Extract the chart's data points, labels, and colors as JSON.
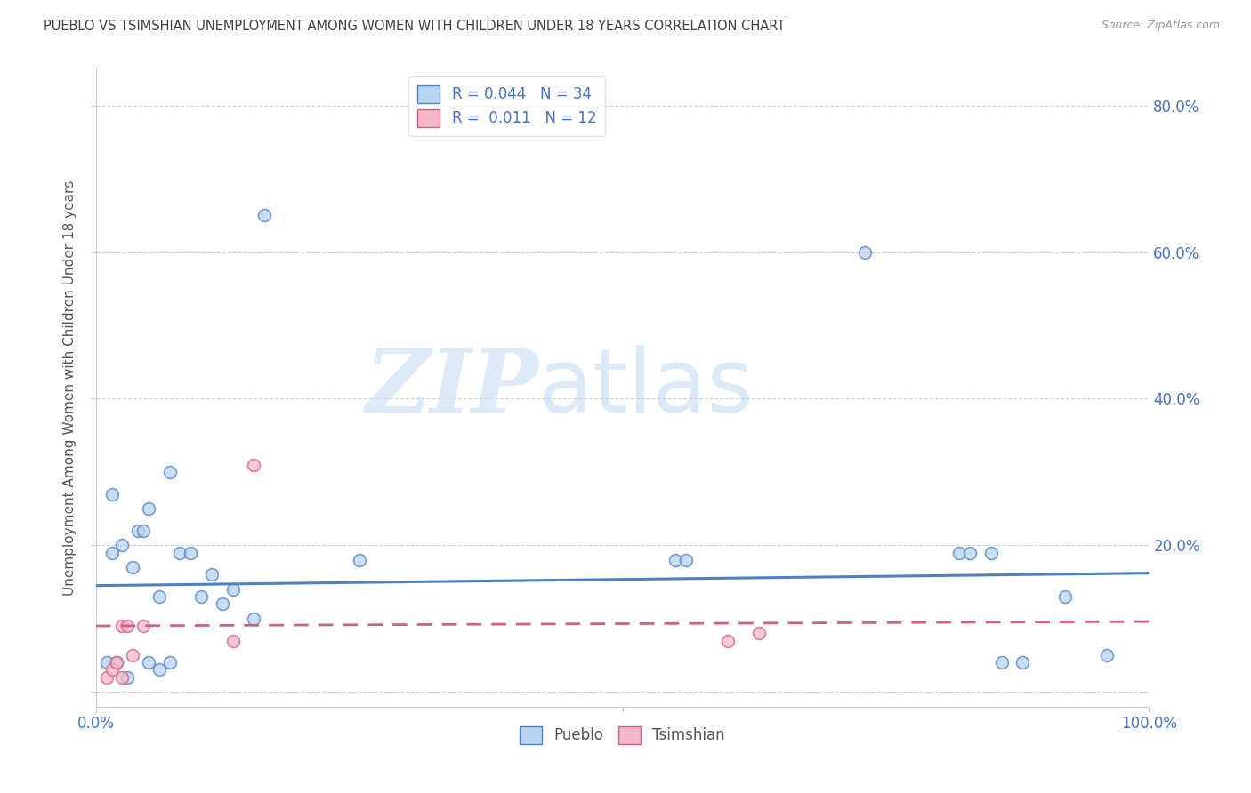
{
  "title": "PUEBLO VS TSIMSHIAN UNEMPLOYMENT AMONG WOMEN WITH CHILDREN UNDER 18 YEARS CORRELATION CHART",
  "source": "Source: ZipAtlas.com",
  "ylabel": "Unemployment Among Women with Children Under 18 years",
  "xlim": [
    0.0,
    1.0
  ],
  "ylim": [
    -0.02,
    0.85
  ],
  "xticks": [
    0.0,
    0.5,
    1.0
  ],
  "xticklabels": [
    "0.0%",
    "",
    "100.0%"
  ],
  "yticks": [
    0.0,
    0.2,
    0.4,
    0.6,
    0.8
  ],
  "yticklabels": [
    "",
    "20.0%",
    "40.0%",
    "60.0%",
    "80.0%"
  ],
  "pueblo_color": "#b8d4f0",
  "pueblo_edge_color": "#5080c0",
  "tsimshian_color": "#f5b8c8",
  "tsimshian_edge_color": "#d06080",
  "pueblo_R": "0.044",
  "pueblo_N": "34",
  "tsimshian_R": "0.011",
  "tsimshian_N": "12",
  "legend_labels": [
    "Pueblo",
    "Tsimshian"
  ],
  "watermark_zip": "ZIP",
  "watermark_atlas": "atlas",
  "pueblo_x": [
    0.01,
    0.015,
    0.02,
    0.025,
    0.03,
    0.035,
    0.04,
    0.045,
    0.05,
    0.06,
    0.07,
    0.08,
    0.09,
    0.1,
    0.11,
    0.12,
    0.13,
    0.15,
    0.16,
    0.25,
    0.55,
    0.56,
    0.73,
    0.82,
    0.83,
    0.85,
    0.86,
    0.88,
    0.92,
    0.96,
    0.015,
    0.05,
    0.06,
    0.07
  ],
  "pueblo_y": [
    0.04,
    0.19,
    0.04,
    0.2,
    0.02,
    0.17,
    0.22,
    0.22,
    0.25,
    0.13,
    0.3,
    0.19,
    0.19,
    0.13,
    0.16,
    0.12,
    0.14,
    0.1,
    0.65,
    0.18,
    0.18,
    0.18,
    0.6,
    0.19,
    0.19,
    0.19,
    0.04,
    0.04,
    0.13,
    0.05,
    0.27,
    0.04,
    0.03,
    0.04
  ],
  "tsimshian_x": [
    0.01,
    0.015,
    0.02,
    0.025,
    0.025,
    0.03,
    0.035,
    0.045,
    0.13,
    0.6,
    0.63,
    0.15
  ],
  "tsimshian_y": [
    0.02,
    0.03,
    0.04,
    0.02,
    0.09,
    0.09,
    0.05,
    0.09,
    0.07,
    0.07,
    0.08,
    0.31
  ],
  "pueblo_trend_x": [
    0.0,
    1.0
  ],
  "pueblo_trend_y": [
    0.145,
    0.162
  ],
  "tsimshian_trend_x": [
    0.0,
    1.0
  ],
  "tsimshian_trend_y": [
    0.09,
    0.096
  ],
  "background_color": "#ffffff",
  "grid_color": "#d0d0d0",
  "title_color": "#404040",
  "tick_label_color": "#4472c4",
  "marker_size": 100,
  "marker_linewidth": 1.2,
  "marker_alpha": 0.75
}
